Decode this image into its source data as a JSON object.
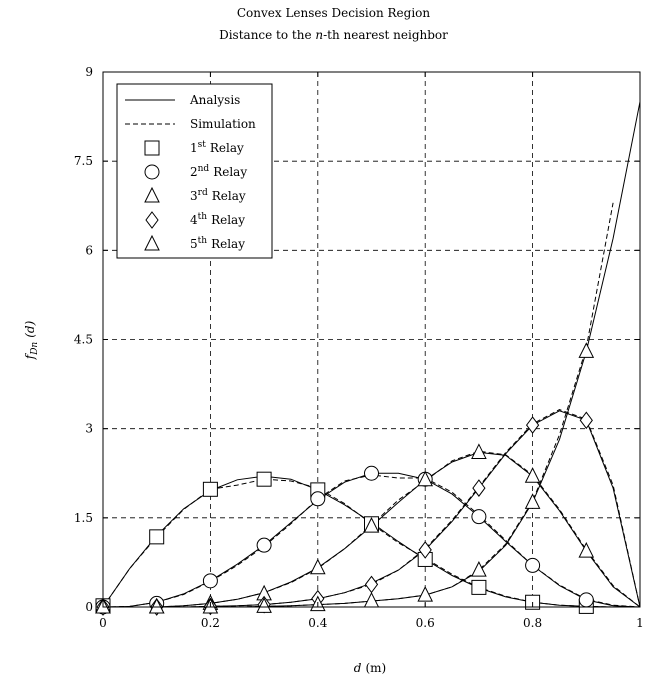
{
  "chart_data": {
    "type": "line",
    "title": "Convex Lenses Decision Region",
    "subtitle_prefix": "Distance to the ",
    "subtitle_italic": "n",
    "subtitle_suffix": "-th nearest neighbor",
    "xlabel_italic": "d",
    "xlabel_unit": "(m)",
    "ylabel_main": "f",
    "ylabel_sub": "Dn",
    "ylabel_arg": "(d)",
    "xlim": [
      0,
      1
    ],
    "ylim": [
      0,
      9
    ],
    "xticks": [
      0,
      0.2,
      0.4,
      0.6,
      0.8,
      1
    ],
    "xtick_labels": [
      "0",
      "0.2",
      "0.4",
      "0.6",
      "0.8",
      "1"
    ],
    "yticks": [
      0,
      1.5,
      3,
      4.5,
      6,
      7.5,
      9
    ],
    "ytick_labels": [
      "0",
      "1.5",
      "3",
      "4.5",
      "6",
      "7.5",
      "9"
    ],
    "grid": true,
    "legend_position": "top-left",
    "legend": [
      {
        "kind": "solid",
        "label": "Analysis"
      },
      {
        "kind": "dashed",
        "label": "Simulation"
      },
      {
        "kind": "square",
        "label_sup": "st",
        "label_num": "1",
        "label_rest": "Relay"
      },
      {
        "kind": "circle",
        "label_sup": "nd",
        "label_num": "2",
        "label_rest": "Relay"
      },
      {
        "kind": "triangle",
        "label_sup": "rd",
        "label_num": "3",
        "label_rest": "Relay"
      },
      {
        "kind": "diamond",
        "label_sup": "th",
        "label_num": "4",
        "label_rest": "Relay"
      },
      {
        "kind": "triangle",
        "label_sup": "th",
        "label_num": "5",
        "label_rest": "Relay"
      }
    ],
    "series": [
      {
        "name": "1st Relay",
        "marker": "square",
        "analysis_x": [
          0,
          0.05,
          0.1,
          0.15,
          0.2,
          0.25,
          0.3,
          0.35,
          0.4,
          0.45,
          0.5,
          0.55,
          0.6,
          0.65,
          0.7,
          0.75,
          0.8,
          0.85,
          0.9,
          0.95,
          1.0
        ],
        "analysis_y": [
          0,
          0.65,
          1.2,
          1.65,
          1.96,
          2.14,
          2.2,
          2.15,
          1.97,
          1.72,
          1.42,
          1.1,
          0.8,
          0.53,
          0.32,
          0.17,
          0.08,
          0.03,
          0.01,
          0.0,
          0
        ],
        "simulation_y": [
          0,
          0.65,
          1.18,
          1.64,
          1.98,
          2.05,
          2.15,
          2.12,
          2.0,
          1.74,
          1.4,
          1.08,
          0.82,
          0.55,
          0.33,
          0.18,
          0.08,
          0.03,
          0.01,
          0.0,
          0
        ],
        "marker_x": [
          0,
          0.1,
          0.2,
          0.3,
          0.4,
          0.5,
          0.6,
          0.7,
          0.8,
          0.9
        ],
        "marker_y": [
          0.02,
          1.18,
          1.98,
          2.15,
          1.97,
          1.4,
          0.8,
          0.33,
          0.08,
          0.01
        ]
      },
      {
        "name": "2nd Relay",
        "marker": "circle",
        "analysis_x": [
          0,
          0.05,
          0.1,
          0.15,
          0.2,
          0.25,
          0.3,
          0.35,
          0.4,
          0.45,
          0.5,
          0.55,
          0.6,
          0.65,
          0.7,
          0.75,
          0.8,
          0.85,
          0.9,
          0.95,
          1.0
        ],
        "analysis_y": [
          0,
          0.01,
          0.08,
          0.22,
          0.44,
          0.72,
          1.04,
          1.42,
          1.8,
          2.1,
          2.25,
          2.25,
          2.15,
          1.9,
          1.52,
          1.1,
          0.7,
          0.36,
          0.12,
          0.02,
          0
        ],
        "simulation_y": [
          0,
          0.01,
          0.08,
          0.21,
          0.43,
          0.7,
          1.02,
          1.4,
          1.82,
          2.12,
          2.22,
          2.17,
          2.17,
          1.93,
          1.55,
          1.12,
          0.7,
          0.37,
          0.13,
          0.03,
          0
        ],
        "marker_x": [
          0,
          0.1,
          0.2,
          0.3,
          0.4,
          0.5,
          0.6,
          0.7,
          0.8,
          0.9
        ],
        "marker_y": [
          0.0,
          0.06,
          0.44,
          1.04,
          1.82,
          2.25,
          2.15,
          1.52,
          0.7,
          0.12
        ]
      },
      {
        "name": "3rd Relay",
        "marker": "triangle",
        "analysis_x": [
          0,
          0.05,
          0.1,
          0.15,
          0.2,
          0.25,
          0.3,
          0.35,
          0.4,
          0.45,
          0.5,
          0.55,
          0.6,
          0.65,
          0.7,
          0.75,
          0.8,
          0.85,
          0.9,
          0.95,
          1.0
        ],
        "analysis_y": [
          0,
          0.0,
          0.0,
          0.02,
          0.06,
          0.13,
          0.24,
          0.42,
          0.66,
          0.98,
          1.36,
          1.76,
          2.14,
          2.44,
          2.6,
          2.55,
          2.2,
          1.62,
          0.94,
          0.34,
          0
        ],
        "simulation_y": [
          0,
          0.0,
          0.0,
          0.02,
          0.06,
          0.13,
          0.24,
          0.41,
          0.65,
          0.98,
          1.38,
          1.8,
          2.12,
          2.46,
          2.62,
          2.56,
          2.22,
          1.64,
          0.96,
          0.36,
          0
        ],
        "marker_x": [
          0,
          0.1,
          0.2,
          0.3,
          0.4,
          0.5,
          0.6,
          0.7,
          0.8,
          0.9
        ],
        "marker_y": [
          0.0,
          0.0,
          0.06,
          0.22,
          0.66,
          1.36,
          2.14,
          2.6,
          2.2,
          0.94
        ]
      },
      {
        "name": "4th Relay",
        "marker": "diamond",
        "analysis_x": [
          0,
          0.05,
          0.1,
          0.15,
          0.2,
          0.25,
          0.3,
          0.35,
          0.4,
          0.45,
          0.5,
          0.55,
          0.6,
          0.65,
          0.7,
          0.75,
          0.8,
          0.85,
          0.9,
          0.95,
          1.0
        ],
        "analysis_y": [
          0,
          0,
          0,
          0,
          0.01,
          0.02,
          0.04,
          0.08,
          0.14,
          0.24,
          0.4,
          0.62,
          0.96,
          1.44,
          2.0,
          2.58,
          3.06,
          3.3,
          3.14,
          2.0,
          0
        ],
        "simulation_y": [
          0,
          0,
          0,
          0,
          0.01,
          0.02,
          0.04,
          0.08,
          0.14,
          0.24,
          0.38,
          0.62,
          0.98,
          1.46,
          2.02,
          2.6,
          3.08,
          3.32,
          3.16,
          2.05,
          0
        ],
        "marker_x": [
          0,
          0.1,
          0.2,
          0.3,
          0.4,
          0.5,
          0.6,
          0.7,
          0.8,
          0.9
        ],
        "marker_y": [
          0.0,
          0.0,
          0.01,
          0.04,
          0.14,
          0.38,
          0.96,
          2.0,
          3.06,
          3.14
        ]
      },
      {
        "name": "5th Relay",
        "marker": "triangle",
        "analysis_x": [
          0,
          0.05,
          0.1,
          0.15,
          0.2,
          0.25,
          0.3,
          0.35,
          0.4,
          0.45,
          0.5,
          0.55,
          0.6,
          0.65,
          0.7,
          0.75,
          0.8,
          0.85,
          0.9,
          0.95,
          1.0
        ],
        "analysis_y": [
          0,
          0,
          0,
          0,
          0,
          0,
          0.01,
          0.02,
          0.04,
          0.06,
          0.1,
          0.14,
          0.2,
          0.34,
          0.6,
          1.04,
          1.76,
          2.82,
          4.3,
          6.2,
          8.5
        ],
        "simulation_y": [
          0,
          0,
          0,
          0,
          0,
          0,
          0.01,
          0.02,
          0.04,
          0.06,
          0.1,
          0.14,
          0.2,
          0.34,
          0.62,
          1.06,
          1.78,
          2.9,
          4.36,
          6.8,
          null
        ],
        "marker_x": [
          0,
          0.1,
          0.2,
          0.3,
          0.4,
          0.5,
          0.6,
          0.7,
          0.8,
          0.9
        ],
        "marker_y": [
          0.0,
          0.0,
          0.0,
          0.01,
          0.04,
          0.1,
          0.2,
          0.62,
          1.76,
          4.3
        ]
      }
    ]
  }
}
